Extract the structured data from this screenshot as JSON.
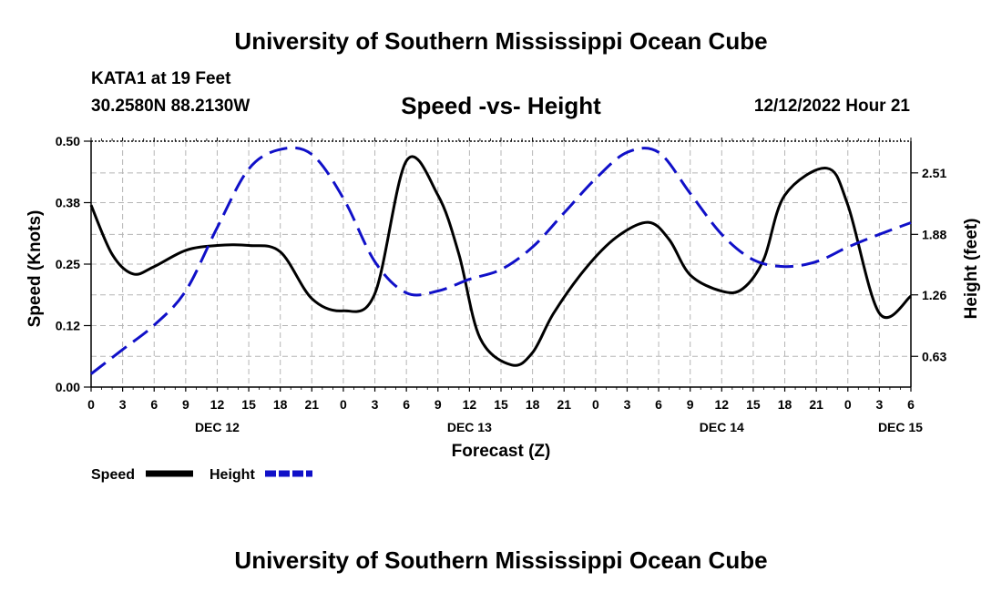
{
  "header": {
    "title": "University of Southern Mississippi Ocean Cube",
    "station": "KATA1 at 19 Feet",
    "coords": "30.2580N  88.2130W",
    "datetime": "12/12/2022 Hour 21",
    "footer_title": "University of Southern Mississippi Ocean Cube"
  },
  "chart_data": {
    "type": "line",
    "title": "Speed -vs- Height",
    "xlabel": "Forecast (Z)",
    "ylabel_left": "Speed (Knots)",
    "ylabel_right": "Height (feet)",
    "x_hours_from_dec12_00z": [
      0,
      3,
      6,
      9,
      12,
      15,
      18,
      21,
      24,
      27,
      30,
      33,
      36,
      39,
      42,
      45,
      48,
      51,
      54,
      57,
      60,
      63,
      66,
      69,
      72,
      75,
      78
    ],
    "x_tick_labels": [
      "0",
      "3",
      "6",
      "9",
      "12",
      "15",
      "18",
      "21",
      "0",
      "3",
      "6",
      "9",
      "12",
      "15",
      "18",
      "21",
      "0",
      "3",
      "6",
      "9",
      "12",
      "15",
      "18",
      "21",
      "0",
      "3",
      "6"
    ],
    "date_labels": [
      {
        "label": "DEC 12",
        "hour": 12
      },
      {
        "label": "DEC 13",
        "hour": 36
      },
      {
        "label": "DEC 14",
        "hour": 60
      },
      {
        "label": "DEC 15",
        "hour": 77
      }
    ],
    "xlim": [
      0,
      78
    ],
    "left_axis": {
      "ylim": [
        0,
        0.5
      ],
      "ticks": [
        0,
        0.125,
        0.25,
        0.375,
        0.5
      ],
      "tick_labels": [
        "0.00",
        "0.12",
        "0.25",
        "0.38",
        "0.50"
      ]
    },
    "right_axis": {
      "ylim": [
        0.315,
        2.835
      ],
      "ticks": [
        0.63,
        1.26,
        1.88,
        2.51
      ],
      "tick_labels": [
        "0.63",
        "1.26",
        "1.88",
        "2.51"
      ]
    },
    "grid": true,
    "series": [
      {
        "name": "Speed",
        "axis": "left",
        "color": "#000000",
        "style": "solid",
        "x": [
          0,
          2,
          4,
          6,
          9,
          12,
          15,
          18,
          21,
          24,
          27,
          30,
          33,
          35,
          37,
          40,
          42,
          44,
          47,
          50,
          53,
          55,
          57,
          60,
          62,
          64,
          66,
          70,
          72,
          75,
          78
        ],
        "y": [
          0.37,
          0.27,
          0.23,
          0.245,
          0.278,
          0.288,
          0.288,
          0.275,
          0.18,
          0.155,
          0.19,
          0.46,
          0.39,
          0.27,
          0.1,
          0.045,
          0.07,
          0.15,
          0.24,
          0.305,
          0.335,
          0.3,
          0.228,
          0.195,
          0.2,
          0.26,
          0.39,
          0.445,
          0.37,
          0.15,
          0.185
        ]
      },
      {
        "name": "Height",
        "axis": "right",
        "color": "#1010c8",
        "style": "dashed",
        "x": [
          0,
          3,
          6,
          9,
          12,
          15,
          18,
          21,
          24,
          27,
          30,
          33,
          36,
          39,
          42,
          45,
          48,
          51,
          54,
          57,
          60,
          63,
          66,
          69,
          72,
          75,
          78
        ],
        "y": [
          0.45,
          0.7,
          0.95,
          1.3,
          1.95,
          2.55,
          2.75,
          2.7,
          2.25,
          1.6,
          1.28,
          1.3,
          1.42,
          1.52,
          1.75,
          2.1,
          2.45,
          2.72,
          2.72,
          2.3,
          1.88,
          1.62,
          1.55,
          1.6,
          1.75,
          1.88,
          2.0
        ]
      }
    ],
    "legend": [
      "Speed",
      "Height"
    ],
    "legend_position": "bottom-left"
  }
}
